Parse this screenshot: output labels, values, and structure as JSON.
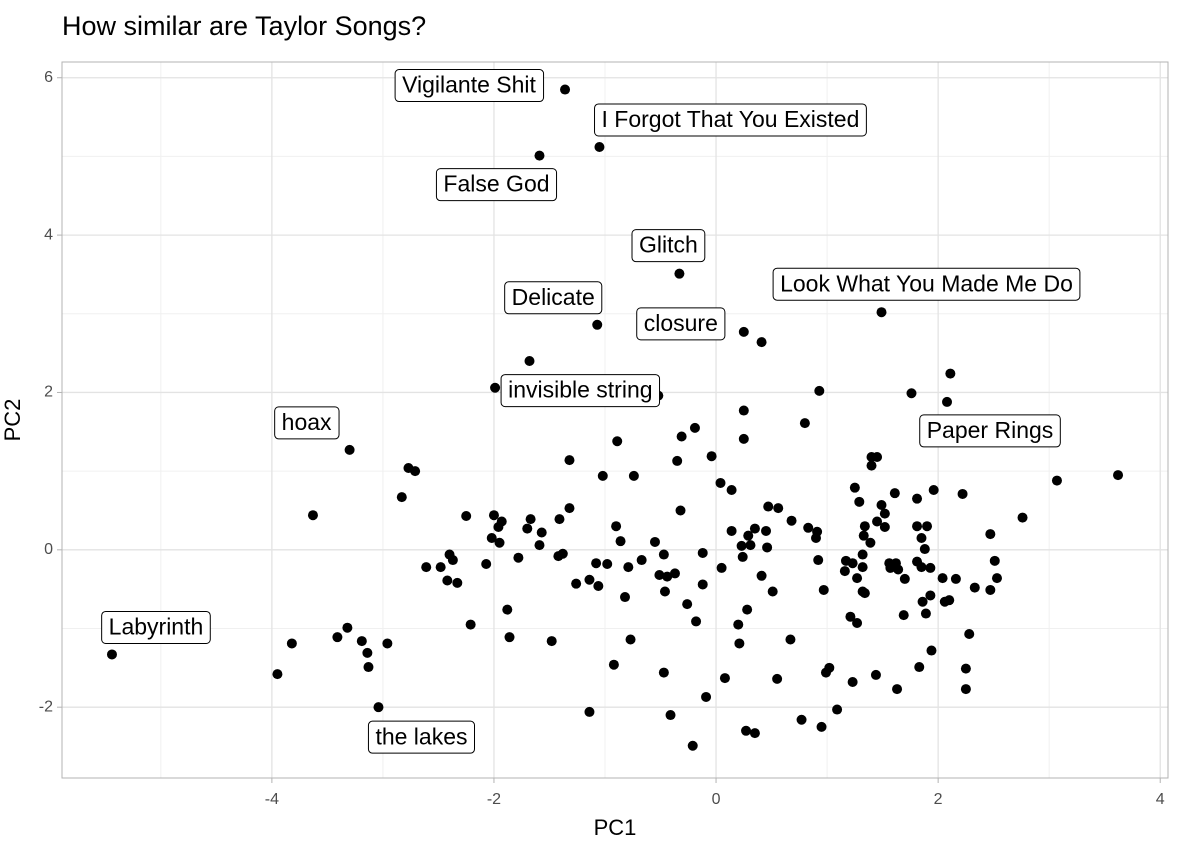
{
  "chart_data": {
    "type": "scatter",
    "title": "How similar are Taylor Songs?",
    "x_label": "PC1",
    "y_label": "PC2",
    "xlim": [
      -5.89,
      4.07
    ],
    "ylim": [
      -2.9,
      6.2
    ],
    "xticks": [
      -4,
      -2,
      0,
      2,
      4
    ],
    "yticks": [
      -2,
      0,
      2,
      4,
      6
    ],
    "grid": true,
    "color": "#000000",
    "labeled_points": {
      "labels": [
        "Vigilante Shit",
        "I Forgot That You Existed",
        "False God",
        "Glitch",
        "Look What You Made Me Do",
        "Delicate",
        "closure",
        "invisible string",
        "Paper Rings",
        "hoax",
        "Labyrinth",
        "the lakes"
      ],
      "x": [
        -1.36,
        -1.05,
        -1.59,
        -0.33,
        1.49,
        -1.07,
        0.25,
        -0.52,
        2.08,
        -3.3,
        -5.44,
        -3.04
      ],
      "y": [
        5.85,
        5.12,
        5.01,
        3.51,
        3.02,
        2.86,
        2.77,
        1.96,
        1.88,
        1.27,
        -1.33,
        -2.0
      ]
    },
    "points": {
      "x": [
        -1.68,
        -1.99,
        0.41,
        0.93,
        1.76,
        2.11,
        0.8,
        0.25,
        0.25,
        -0.19,
        -0.31,
        -0.89,
        -0.35,
        -0.04,
        -1.32,
        -2.77,
        -2.71,
        -2.83,
        -3.63,
        -1.02,
        -0.74,
        0.04,
        0.14,
        1.4,
        1.45,
        1.4,
        3.07,
        3.62,
        1.25,
        1.96,
        1.61,
        2.22,
        1.81,
        0.47,
        0.56,
        -0.32,
        -2.25,
        -2.0,
        -1.32,
        -1.41,
        -1.67,
        -1.93,
        1.29,
        1.49,
        1.52,
        1.45,
        1.34,
        1.52,
        1.81,
        1.9,
        2.47,
        2.76,
        -1.96,
        -1.7,
        -1.57,
        -0.9,
        0.14,
        0.35,
        0.45,
        0.68,
        0.83,
        0.91,
        0.29,
        1.33,
        1.39,
        1.85,
        -2.02,
        -1.95,
        -1.59,
        -0.86,
        -0.55,
        0.23,
        0.46,
        0.9,
        0.31,
        1.32,
        1.88,
        2.51,
        -2.4,
        -2.37,
        -1.78,
        -1.42,
        -1.38,
        -1.08,
        -0.98,
        -0.79,
        -0.67,
        -0.47,
        -0.12,
        -2.61,
        -2.48,
        -2.07,
        0.05,
        0.24,
        0.92,
        1.17,
        1.23,
        1.32,
        1.56,
        1.57,
        1.62,
        1.64,
        1.81,
        1.85,
        1.93,
        -0.51,
        -0.44,
        -0.37,
        0.41,
        1.16,
        1.27,
        1.7,
        2.04,
        2.16,
        2.53,
        -2.42,
        -2.33,
        -1.26,
        -1.14,
        -1.06,
        -0.12,
        -0.46,
        0.51,
        0.97,
        1.32,
        1.34,
        2.33,
        2.47,
        -0.82,
        1.93,
        1.86,
        2.06,
        2.1,
        -0.26,
        -1.88,
        0.28,
        1.69,
        1.89,
        1.21,
        1.27,
        -0.18,
        0.2,
        -2.21,
        2.28,
        -1.86,
        -0.77,
        -1.48,
        0.67,
        0.21,
        -3.41,
        -3.32,
        -3.82,
        -3.19,
        -3.14,
        -2.96,
        1.94,
        -3.13,
        -0.92,
        1.83,
        2.25,
        1.02,
        0.99,
        -3.95,
        -0.47,
        1.44,
        0.08,
        0.55,
        1.23,
        2.25,
        1.63,
        -0.09,
        1.09,
        -1.14,
        -0.41,
        0.77,
        0.95,
        0.27,
        0.35,
        -0.21
      ],
      "y": [
        2.4,
        2.06,
        2.64,
        2.02,
        1.99,
        2.24,
        1.61,
        1.77,
        1.41,
        1.55,
        1.44,
        1.38,
        1.13,
        1.19,
        1.14,
        1.04,
        1.0,
        0.67,
        0.44,
        0.94,
        0.94,
        0.85,
        0.76,
        1.18,
        1.18,
        1.07,
        0.88,
        0.95,
        0.79,
        0.76,
        0.72,
        0.71,
        0.65,
        0.55,
        0.53,
        0.5,
        0.43,
        0.44,
        0.53,
        0.39,
        0.39,
        0.36,
        0.61,
        0.57,
        0.46,
        0.36,
        0.3,
        0.29,
        0.3,
        0.3,
        0.2,
        0.41,
        0.29,
        0.27,
        0.22,
        0.3,
        0.24,
        0.27,
        0.24,
        0.37,
        0.28,
        0.23,
        0.18,
        0.18,
        0.09,
        0.15,
        0.15,
        0.09,
        0.06,
        0.11,
        0.1,
        0.05,
        0.03,
        0.15,
        0.06,
        -0.06,
        0.01,
        -0.14,
        -0.06,
        -0.13,
        -0.1,
        -0.08,
        -0.05,
        -0.17,
        -0.18,
        -0.22,
        -0.13,
        -0.06,
        -0.04,
        -0.22,
        -0.22,
        -0.18,
        -0.23,
        -0.09,
        -0.13,
        -0.14,
        -0.17,
        -0.22,
        -0.17,
        -0.23,
        -0.17,
        -0.25,
        -0.15,
        -0.22,
        -0.23,
        -0.32,
        -0.34,
        -0.3,
        -0.33,
        -0.27,
        -0.36,
        -0.37,
        -0.36,
        -0.37,
        -0.36,
        -0.39,
        -0.42,
        -0.43,
        -0.38,
        -0.46,
        -0.44,
        -0.53,
        -0.53,
        -0.51,
        -0.53,
        -0.55,
        -0.48,
        -0.51,
        -0.6,
        -0.58,
        -0.66,
        -0.66,
        -0.64,
        -0.69,
        -0.76,
        -0.76,
        -0.83,
        -0.81,
        -0.85,
        -0.93,
        -0.91,
        -0.95,
        -0.95,
        -1.07,
        -1.11,
        -1.14,
        -1.16,
        -1.14,
        -1.19,
        -1.11,
        -0.99,
        -1.19,
        -1.16,
        -1.31,
        -1.19,
        -1.28,
        -1.49,
        -1.46,
        -1.49,
        -1.51,
        -1.5,
        -1.56,
        -1.58,
        -1.56,
        -1.59,
        -1.63,
        -1.64,
        -1.68,
        -1.77,
        -1.77,
        -1.87,
        -2.03,
        -2.06,
        -2.1,
        -2.16,
        -2.25,
        -2.3,
        -2.33,
        -2.49
      ]
    }
  }
}
